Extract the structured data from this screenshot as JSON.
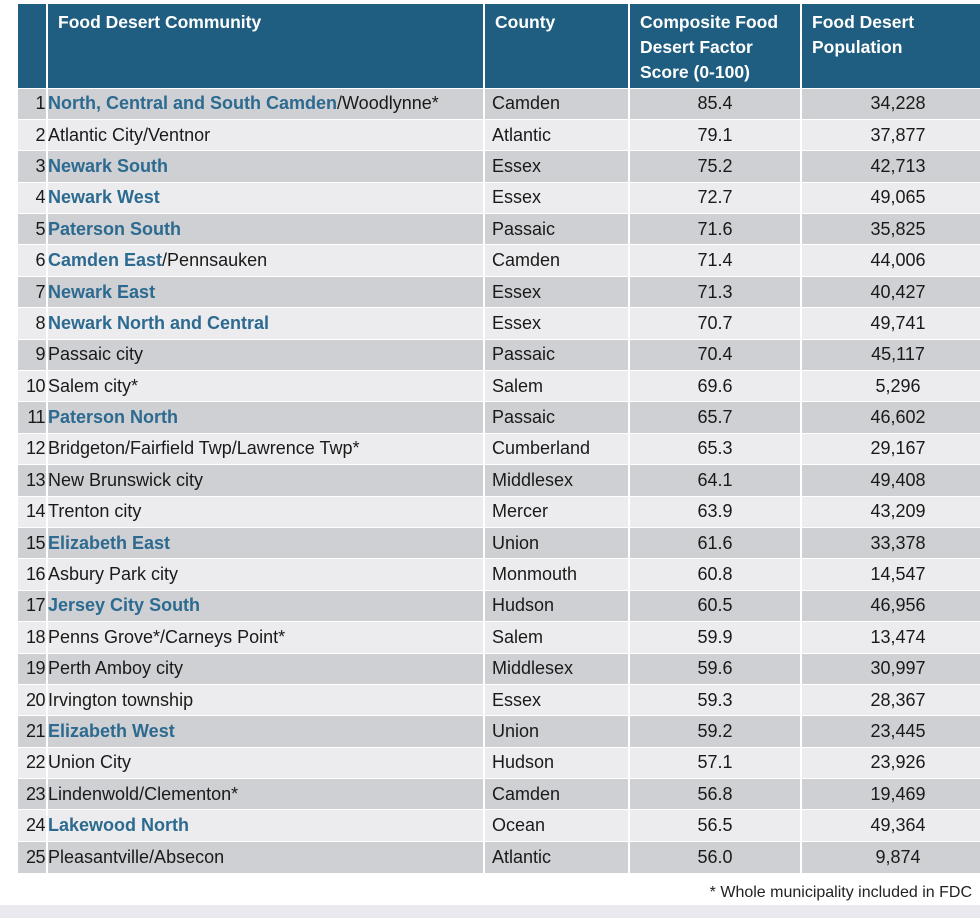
{
  "table": {
    "headers": {
      "community": "Food Desert Community",
      "county": "County",
      "score": "Composite Food Desert Factor Score (0-100)",
      "population": "Food Desert Population"
    },
    "rows": [
      {
        "rank": "1",
        "community_hl": "North, Central and South Camden",
        "community_rest": "/Woodlynne*",
        "county": "Camden",
        "score": "85.4",
        "population": "34,228"
      },
      {
        "rank": "2",
        "community_hl": "",
        "community_rest": "Atlantic City/Ventnor",
        "county": "Atlantic",
        "score": "79.1",
        "population": "37,877"
      },
      {
        "rank": "3",
        "community_hl": "Newark South",
        "community_rest": "",
        "county": "Essex",
        "score": "75.2",
        "population": "42,713"
      },
      {
        "rank": "4",
        "community_hl": "Newark West",
        "community_rest": "",
        "county": "Essex",
        "score": "72.7",
        "population": "49,065"
      },
      {
        "rank": "5",
        "community_hl": "Paterson South",
        "community_rest": "",
        "county": "Passaic",
        "score": "71.6",
        "population": "35,825"
      },
      {
        "rank": "6",
        "community_hl": "Camden East",
        "community_rest": "/Pennsauken",
        "county": "Camden",
        "score": "71.4",
        "population": "44,006"
      },
      {
        "rank": "7",
        "community_hl": "Newark East",
        "community_rest": "",
        "county": "Essex",
        "score": "71.3",
        "population": "40,427"
      },
      {
        "rank": "8",
        "community_hl": "Newark North and Central",
        "community_rest": "",
        "county": "Essex",
        "score": "70.7",
        "population": "49,741"
      },
      {
        "rank": "9",
        "community_hl": "",
        "community_rest": "Passaic city",
        "county": "Passaic",
        "score": "70.4",
        "population": "45,117"
      },
      {
        "rank": "10",
        "community_hl": "",
        "community_rest": "Salem city*",
        "county": "Salem",
        "score": "69.6",
        "population": "5,296"
      },
      {
        "rank": "11",
        "community_hl": "Paterson North",
        "community_rest": "",
        "county": "Passaic",
        "score": "65.7",
        "population": "46,602"
      },
      {
        "rank": "12",
        "community_hl": "",
        "community_rest": "Bridgeton/Fairfield Twp/Lawrence Twp*",
        "county": "Cumberland",
        "score": "65.3",
        "population": "29,167"
      },
      {
        "rank": "13",
        "community_hl": "",
        "community_rest": "New Brunswick city",
        "county": "Middlesex",
        "score": "64.1",
        "population": "49,408"
      },
      {
        "rank": "14",
        "community_hl": "",
        "community_rest": "Trenton city",
        "county": "Mercer",
        "score": "63.9",
        "population": "43,209"
      },
      {
        "rank": "15",
        "community_hl": "Elizabeth East",
        "community_rest": "",
        "county": "Union",
        "score": "61.6",
        "population": "33,378"
      },
      {
        "rank": "16",
        "community_hl": "",
        "community_rest": "Asbury Park city",
        "county": "Monmouth",
        "score": "60.8",
        "population": "14,547"
      },
      {
        "rank": "17",
        "community_hl": "Jersey City South",
        "community_rest": "",
        "county": "Hudson",
        "score": "60.5",
        "population": "46,956"
      },
      {
        "rank": "18",
        "community_hl": "",
        "community_rest": "Penns Grove*/Carneys Point*",
        "county": "Salem",
        "score": "59.9",
        "population": "13,474"
      },
      {
        "rank": "19",
        "community_hl": "",
        "community_rest": "Perth Amboy city",
        "county": "Middlesex",
        "score": "59.6",
        "population": "30,997"
      },
      {
        "rank": "20",
        "community_hl": "",
        "community_rest": "Irvington township",
        "county": "Essex",
        "score": "59.3",
        "population": "28,367"
      },
      {
        "rank": "21",
        "community_hl": "Elizabeth West",
        "community_rest": "",
        "county": "Union",
        "score": "59.2",
        "population": "23,445"
      },
      {
        "rank": "22",
        "community_hl": "",
        "community_rest": "Union City",
        "county": "Hudson",
        "score": "57.1",
        "population": "23,926"
      },
      {
        "rank": "23",
        "community_hl": "",
        "community_rest": "Lindenwold/Clementon*",
        "county": "Camden",
        "score": "56.8",
        "population": "19,469"
      },
      {
        "rank": "24",
        "community_hl": "Lakewood North",
        "community_rest": "",
        "county": "Ocean",
        "score": "56.5",
        "population": "49,364"
      },
      {
        "rank": "25",
        "community_hl": "",
        "community_rest": "Pleasantville/Absecon",
        "county": "Atlantic",
        "score": "56.0",
        "population": "9,874"
      }
    ]
  },
  "footnote": "* Whole municipality included in FDC",
  "colors": {
    "header_bg": "#1f5e80",
    "highlight_text": "#2c6a90",
    "row_dark": "#cfd0d3",
    "row_light": "#ececee"
  }
}
